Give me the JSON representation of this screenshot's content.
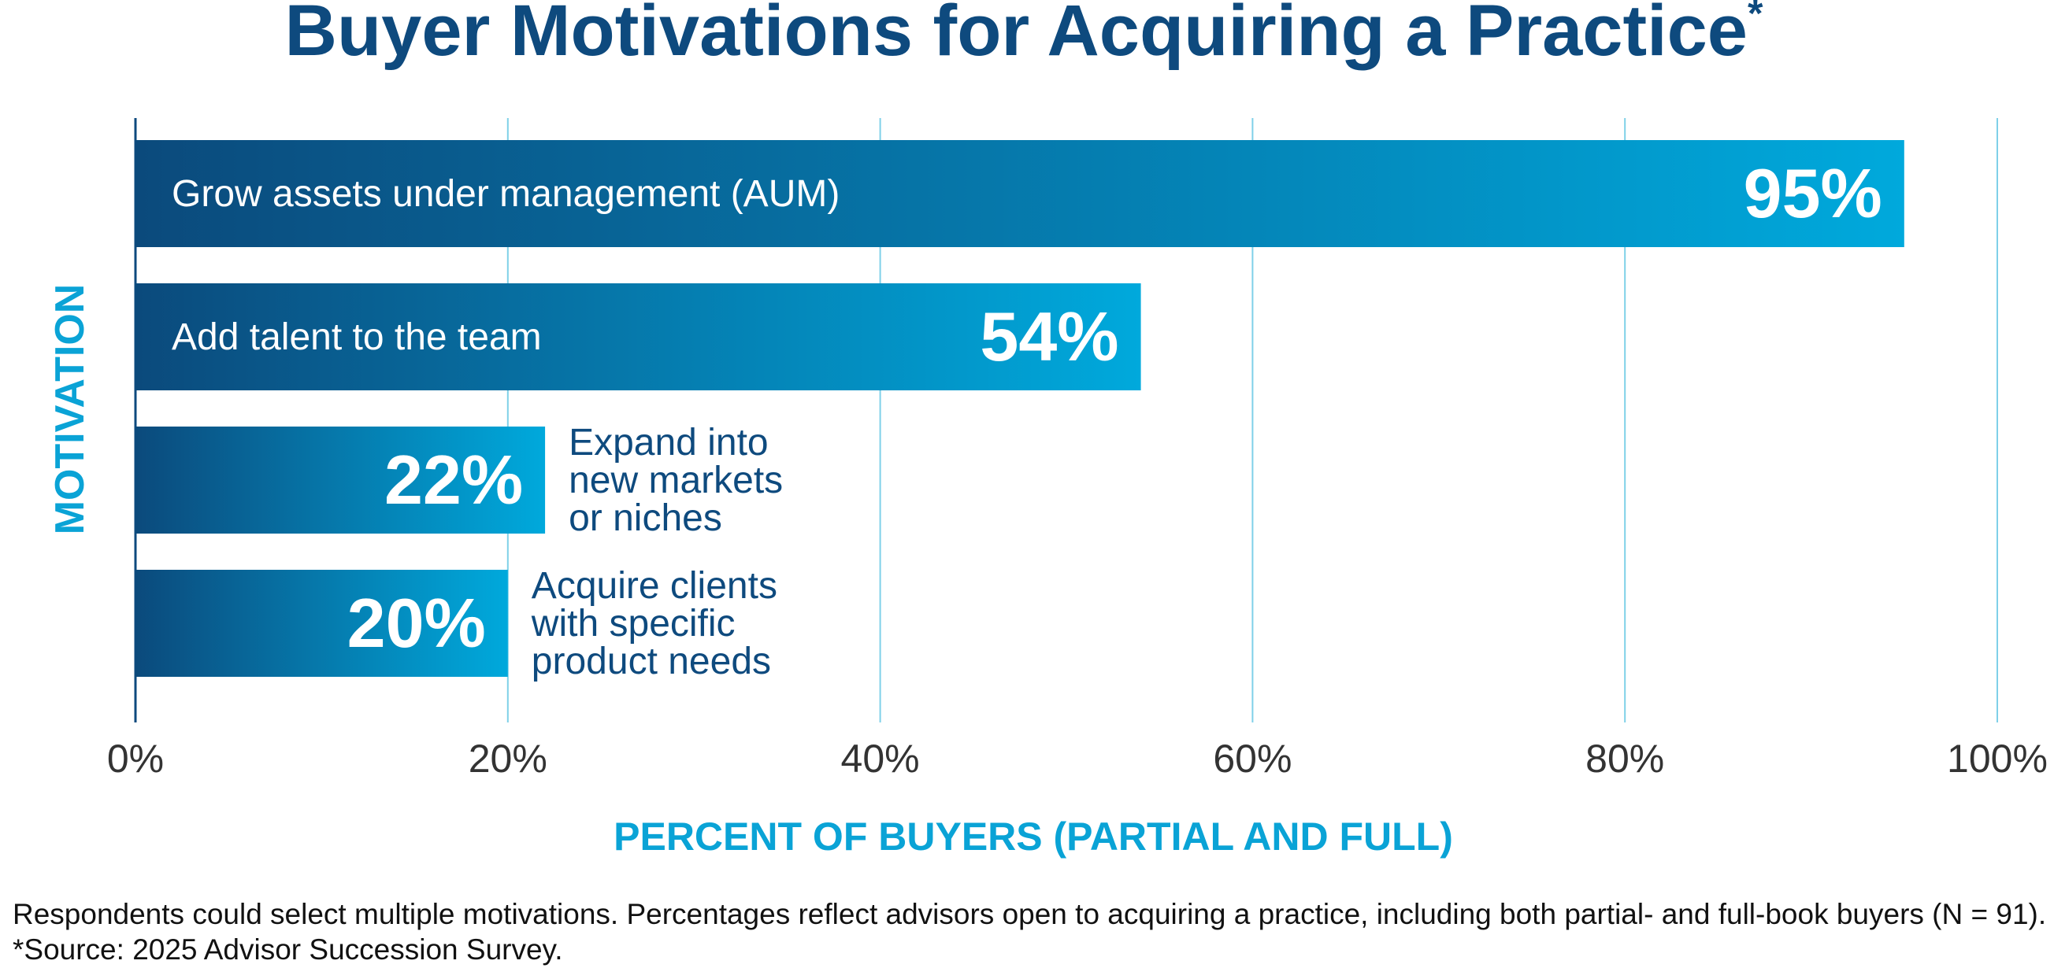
{
  "colors": {
    "title": "#0e4a7e",
    "accent": "#0aa3d6",
    "bar_start": "#0b4a7c",
    "bar_end": "#00a9dc",
    "grid": "#7fd0e8",
    "axis": "#0e4a7e"
  },
  "chart_data": {
    "type": "bar",
    "orientation": "horizontal",
    "title": "Buyer Motivations for Acquiring a Practice",
    "title_marker": "*",
    "xlabel": "PERCENT OF BUYERS (PARTIAL AND FULL)",
    "ylabel": "MOTIVATION",
    "xlim": [
      0,
      100
    ],
    "x_ticks": [
      "0%",
      "20%",
      "40%",
      "60%",
      "80%",
      "100%"
    ],
    "grid": true,
    "categories": [
      "Grow assets under management (AUM)",
      "Add talent to the team",
      "Expand into new markets or niches",
      "Acquire clients with specific product needs"
    ],
    "category_label_lines": [
      [
        "Grow assets under management (AUM)"
      ],
      [
        "Add talent to the team"
      ],
      [
        "Expand into",
        "new markets",
        "or niches"
      ],
      [
        "Acquire clients",
        "with specific",
        "product needs"
      ]
    ],
    "values": [
      95,
      54,
      22,
      20
    ],
    "value_labels": [
      "95%",
      "54%",
      "22%",
      "20%"
    ]
  },
  "footnotes": {
    "line1": "Respondents could select multiple motivations. Percentages reflect advisors open to acquiring a practice, including both partial- and full-book buyers (N = 91).",
    "line2": "*Source: 2025 Advisor Succession Survey."
  }
}
